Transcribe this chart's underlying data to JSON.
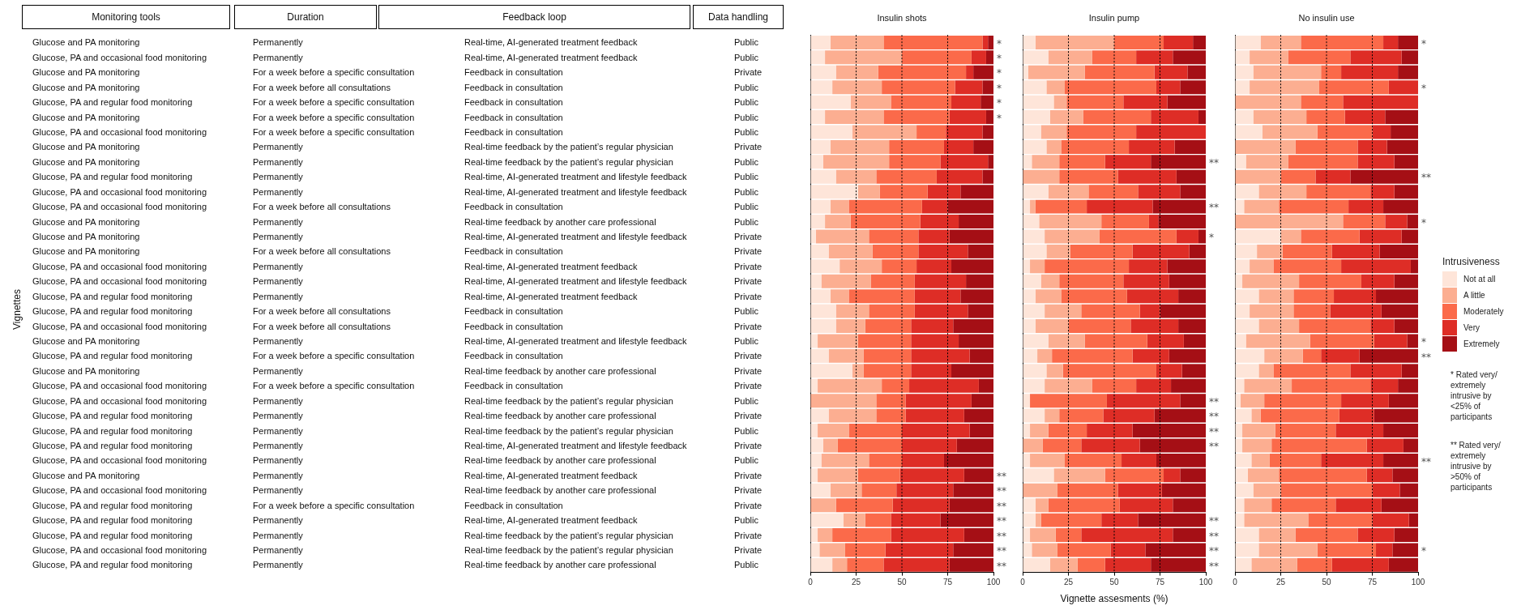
{
  "chart_data": [
    {
      "type": "other",
      "ylabel": "Vignettes",
      "categories": [
        "Monitoring tools",
        "Duration",
        "Feedback loop",
        "Data handling"
      ],
      "cell_labels": [
        [
          "Glucose and PA monitoring",
          "Permanently",
          "Real-time, AI-generated treatment feedback",
          "Public"
        ],
        [
          "Glucose, PA and occasional food monitoring",
          "Permanently",
          "Real-time, AI-generated treatment feedback",
          "Public"
        ],
        [
          "Glucose and PA monitoring",
          "For a week before a specific consultation",
          "Feedback in consultation",
          "Private"
        ],
        [
          "Glucose and PA monitoring",
          "For a week before all consultations",
          "Feedback in consultation",
          "Public"
        ],
        [
          "Glucose, PA and regular food monitoring",
          "For a week before a specific consultation",
          "Feedback in consultation",
          "Public"
        ],
        [
          "Glucose and PA monitoring",
          "For a week before a specific consultation",
          "Feedback in consultation",
          "Public"
        ],
        [
          "Glucose, PA and occasional food monitoring",
          "For a week before a specific consultation",
          "Feedback in consultation",
          "Public"
        ],
        [
          "Glucose and PA monitoring",
          "Permanently",
          "Real-time feedback by the patient’s regular physician",
          "Private"
        ],
        [
          "Glucose and PA monitoring",
          "Permanently",
          "Real-time feedback by the patient’s regular physician",
          "Public"
        ],
        [
          "Glucose, PA and regular food monitoring",
          "Permanently",
          "Real-time, AI-generated treatment and lifestyle feedback",
          "Public"
        ],
        [
          "Glucose, PA and occasional food monitoring",
          "Permanently",
          "Real-time, AI-generated treatment and lifestyle feedback",
          "Public"
        ],
        [
          "Glucose, PA and occasional food monitoring",
          "For a week before all consultations",
          "Feedback in consultation",
          "Public"
        ],
        [
          "Glucose and PA monitoring",
          "Permanently",
          "Real-time feedback by another care professional",
          "Public"
        ],
        [
          "Glucose and PA monitoring",
          "Permanently",
          "Real-time, AI-generated treatment and lifestyle feedback",
          "Private"
        ],
        [
          "Glucose and PA monitoring",
          "For a week before all consultations",
          "Feedback in consultation",
          "Private"
        ],
        [
          "Glucose, PA and occasional food monitoring",
          "Permanently",
          "Real-time, AI-generated treatment feedback",
          "Private"
        ],
        [
          "Glucose, PA and occasional food monitoring",
          "Permanently",
          "Real-time, AI-generated treatment and lifestyle feedback",
          "Private"
        ],
        [
          "Glucose, PA and regular food monitoring",
          "Permanently",
          "Real-time, AI-generated treatment feedback",
          "Private"
        ],
        [
          "Glucose, PA and regular food monitoring",
          "For a week before all consultations",
          "Feedback in consultation",
          "Public"
        ],
        [
          "Glucose, PA and occasional food monitoring",
          "For a week before all consultations",
          "Feedback in consultation",
          "Private"
        ],
        [
          "Glucose and PA monitoring",
          "Permanently",
          "Real-time, AI-generated treatment and lifestyle feedback",
          "Public"
        ],
        [
          "Glucose, PA and regular food monitoring",
          "For a week before a specific consultation",
          "Feedback in consultation",
          "Private"
        ],
        [
          "Glucose and PA monitoring",
          "Permanently",
          "Real-time feedback by another care professional",
          "Private"
        ],
        [
          "Glucose, PA and occasional food monitoring",
          "For a week before a specific consultation",
          "Feedback in consultation",
          "Private"
        ],
        [
          "Glucose, PA and occasional food monitoring",
          "Permanently",
          "Real-time feedback by the patient’s regular physician",
          "Public"
        ],
        [
          "Glucose, PA and regular food monitoring",
          "Permanently",
          "Real-time feedback by another care professional",
          "Private"
        ],
        [
          "Glucose, PA and regular food monitoring",
          "Permanently",
          "Real-time feedback by the patient’s regular physician",
          "Public"
        ],
        [
          "Glucose, PA and regular food monitoring",
          "Permanently",
          "Real-time, AI-generated treatment and lifestyle feedback",
          "Private"
        ],
        [
          "Glucose, PA and occasional food monitoring",
          "Permanently",
          "Real-time feedback by another care professional",
          "Public"
        ],
        [
          "Glucose and PA monitoring",
          "Permanently",
          "Real-time, AI-generated treatment feedback",
          "Private"
        ],
        [
          "Glucose, PA and occasional food monitoring",
          "Permanently",
          "Real-time feedback by another care professional",
          "Private"
        ],
        [
          "Glucose, PA and regular food monitoring",
          "For a week before a specific consultation",
          "Feedback in consultation",
          "Private"
        ],
        [
          "Glucose, PA and regular food monitoring",
          "Permanently",
          "Real-time, AI-generated treatment feedback",
          "Public"
        ],
        [
          "Glucose, PA and regular food monitoring",
          "Permanently",
          "Real-time feedback by the patient’s regular physician",
          "Private"
        ],
        [
          "Glucose, PA and occasional food monitoring",
          "Permanently",
          "Real-time feedback by the patient’s regular physician",
          "Private"
        ],
        [
          "Glucose, PA and regular food monitoring",
          "Permanently",
          "Real-time feedback by another care professional",
          "Public"
        ]
      ]
    },
    {
      "type": "bar",
      "orientation": "horizontal",
      "stacked": true,
      "title": "Insulin shots",
      "categories": [
        null,
        null,
        null,
        null,
        null,
        null,
        null,
        null,
        null,
        null,
        null,
        null,
        null,
        null,
        null,
        null,
        null,
        null,
        null,
        null,
        null,
        null,
        null,
        null,
        null,
        null,
        null,
        null,
        null,
        null,
        null,
        null,
        null,
        null,
        null,
        null
      ],
      "xlim": [
        0,
        100
      ],
      "xticks": [
        0,
        25,
        50,
        75,
        100
      ],
      "tick_labels": "x",
      "grid": false,
      "ref_lines": [
        {
          "axis": "x",
          "value": 25,
          "color": "#000000",
          "line_style": "dotted"
        },
        {
          "axis": "x",
          "value": 50,
          "color": "#000000",
          "line_style": "dotted"
        },
        {
          "axis": "x",
          "value": 75,
          "color": "#000000",
          "line_style": "dotted"
        }
      ],
      "series": [
        {
          "color": "#fee5d9",
          "values": [
            11,
            8,
            14,
            12,
            22,
            8,
            23,
            11,
            7,
            14,
            26,
            11,
            8,
            3,
            10,
            16,
            6,
            11,
            14,
            14,
            4,
            10,
            23,
            4,
            0,
            10,
            4,
            7,
            6,
            4,
            11,
            0,
            18,
            4,
            5,
            12
          ]
        },
        {
          "color": "#fcae91",
          "values": [
            29,
            42,
            23,
            27,
            22,
            32,
            35,
            32,
            36,
            22,
            12,
            10,
            14,
            29,
            24,
            23,
            27,
            10,
            18,
            16,
            22,
            19,
            6,
            35,
            36,
            26,
            17,
            8,
            26,
            22,
            17,
            14,
            12,
            8,
            14,
            8
          ]
        },
        {
          "color": "#fb6a4a",
          "values": [
            54,
            38,
            48,
            40,
            33,
            36,
            16,
            30,
            28,
            33,
            26,
            40,
            38,
            27,
            25,
            19,
            24,
            36,
            25,
            25,
            29,
            26,
            26,
            15,
            16,
            16,
            29,
            35,
            18,
            23,
            19,
            31,
            14,
            32,
            22,
            20
          ]
        },
        {
          "color": "#de2d26",
          "values": [
            3,
            8,
            4,
            15,
            16,
            20,
            20,
            16,
            26,
            25,
            18,
            14,
            21,
            17,
            27,
            19,
            28,
            25,
            29,
            23,
            26,
            32,
            22,
            38,
            36,
            32,
            37,
            30,
            23,
            35,
            31,
            31,
            27,
            40,
            37,
            36
          ]
        },
        {
          "color": "#a50f15",
          "values": [
            3,
            4,
            11,
            6,
            7,
            4,
            6,
            11,
            3,
            6,
            18,
            25,
            19,
            24,
            14,
            23,
            15,
            18,
            14,
            22,
            19,
            13,
            23,
            8,
            12,
            16,
            13,
            20,
            27,
            16,
            22,
            24,
            29,
            16,
            22,
            24
          ],
          "value_labels": [
            "*",
            "*",
            "*",
            "*",
            "*",
            "*",
            null,
            null,
            null,
            null,
            null,
            null,
            null,
            null,
            null,
            null,
            null,
            null,
            null,
            null,
            null,
            null,
            null,
            null,
            null,
            null,
            null,
            null,
            null,
            "**",
            "**",
            "**",
            "**",
            "**",
            "**",
            "**"
          ]
        }
      ]
    },
    {
      "type": "bar",
      "orientation": "horizontal",
      "stacked": true,
      "title": "Insulin pump",
      "xlabel": "Vignette assesments (%)",
      "categories": [
        null,
        null,
        null,
        null,
        null,
        null,
        null,
        null,
        null,
        null,
        null,
        null,
        null,
        null,
        null,
        null,
        null,
        null,
        null,
        null,
        null,
        null,
        null,
        null,
        null,
        null,
        null,
        null,
        null,
        null,
        null,
        null,
        null,
        null,
        null,
        null
      ],
      "xlim": [
        0,
        100
      ],
      "xticks": [
        0,
        25,
        50,
        75,
        100
      ],
      "tick_labels": "x",
      "grid": false,
      "ref_lines": [
        {
          "axis": "x",
          "value": 25,
          "color": "#000000",
          "line_style": "dotted"
        },
        {
          "axis": "x",
          "value": 50,
          "color": "#000000",
          "line_style": "dotted"
        },
        {
          "axis": "x",
          "value": 75,
          "color": "#000000",
          "line_style": "dotted"
        }
      ],
      "series": [
        {
          "color": "#fee5d9",
          "values": [
            7,
            14,
            3,
            13,
            17,
            15,
            10,
            13,
            5,
            0,
            14,
            4,
            9,
            12,
            13,
            4,
            10,
            7,
            12,
            7,
            14,
            8,
            13,
            12,
            4,
            12,
            4,
            0,
            4,
            17,
            0,
            7,
            7,
            4,
            5,
            15
          ]
        },
        {
          "color": "#fcae91",
          "values": [
            43,
            24,
            31,
            10,
            7,
            18,
            14,
            8,
            15,
            20,
            22,
            3,
            34,
            30,
            13,
            8,
            10,
            14,
            20,
            18,
            20,
            8,
            9,
            26,
            0,
            8,
            10,
            11,
            19,
            28,
            19,
            7,
            3,
            14,
            14,
            15
          ]
        },
        {
          "color": "#fb6a4a",
          "values": [
            27,
            24,
            38,
            50,
            31,
            37,
            38,
            37,
            25,
            32,
            27,
            28,
            26,
            42,
            34,
            46,
            35,
            36,
            32,
            34,
            34,
            44,
            51,
            24,
            42,
            24,
            21,
            21,
            31,
            32,
            33,
            39,
            33,
            14,
            29,
            15
          ]
        },
        {
          "color": "#de2d26",
          "values": [
            16,
            20,
            18,
            13,
            24,
            26,
            38,
            25,
            25,
            32,
            23,
            36,
            5,
            12,
            31,
            21,
            25,
            28,
            11,
            26,
            20,
            20,
            14,
            19,
            40,
            28,
            25,
            32,
            19,
            9,
            24,
            29,
            20,
            50,
            19,
            25
          ]
        },
        {
          "color": "#a50f15",
          "values": [
            7,
            18,
            10,
            14,
            21,
            4,
            0,
            17,
            30,
            16,
            14,
            29,
            26,
            4,
            9,
            21,
            20,
            15,
            25,
            15,
            12,
            20,
            13,
            19,
            14,
            28,
            40,
            36,
            27,
            14,
            24,
            18,
            37,
            18,
            33,
            30
          ],
          "value_labels": [
            null,
            null,
            null,
            null,
            null,
            null,
            null,
            null,
            "**",
            null,
            null,
            "**",
            null,
            "*",
            null,
            null,
            null,
            null,
            null,
            null,
            null,
            null,
            null,
            null,
            "**",
            "**",
            "**",
            "**",
            null,
            null,
            null,
            null,
            "**",
            "**",
            "**",
            "**"
          ]
        }
      ]
    },
    {
      "type": "bar",
      "orientation": "horizontal",
      "stacked": true,
      "title": "No insulin use",
      "categories": [
        null,
        null,
        null,
        null,
        null,
        null,
        null,
        null,
        null,
        null,
        null,
        null,
        null,
        null,
        null,
        null,
        null,
        null,
        null,
        null,
        null,
        null,
        null,
        null,
        null,
        null,
        null,
        null,
        null,
        null,
        null,
        null,
        null,
        null,
        null,
        null
      ],
      "xlim": [
        0,
        100
      ],
      "xticks": [
        0,
        25,
        50,
        75,
        100
      ],
      "tick_labels": "x",
      "grid": false,
      "ref_lines": [
        {
          "axis": "x",
          "value": 25,
          "color": "#000000",
          "line_style": "dotted"
        },
        {
          "axis": "x",
          "value": 50,
          "color": "#000000",
          "line_style": "dotted"
        },
        {
          "axis": "x",
          "value": 75,
          "color": "#000000",
          "line_style": "dotted"
        }
      ],
      "legend": "right",
      "legend_title": "Intrusiveness",
      "annotations": [
        "* Rated very/ extremely intrusive by <25% of participants",
        "** Rated very/ extremely intrusive by >50% of participants"
      ],
      "series": [
        {
          "name": "Not at all",
          "color": "#fee5d9",
          "values": [
            14,
            8,
            10,
            8,
            0,
            10,
            15,
            0,
            6,
            0,
            13,
            5,
            0,
            25,
            12,
            8,
            4,
            13,
            8,
            13,
            6,
            16,
            13,
            5,
            3,
            9,
            4,
            4,
            9,
            7,
            10,
            5,
            5,
            13,
            13,
            9
          ]
        },
        {
          "name": "A little",
          "color": "#fcae91",
          "values": [
            22,
            21,
            37,
            38,
            36,
            29,
            30,
            33,
            23,
            25,
            26,
            19,
            59,
            11,
            14,
            13,
            31,
            19,
            24,
            22,
            35,
            21,
            8,
            26,
            13,
            5,
            18,
            16,
            10,
            17,
            15,
            15,
            35,
            20,
            32,
            25
          ]
        },
        {
          "name": "Moderately",
          "color": "#fb6a4a",
          "values": [
            45,
            34,
            11,
            38,
            23,
            21,
            30,
            34,
            38,
            19,
            35,
            38,
            23,
            32,
            27,
            37,
            34,
            22,
            20,
            39,
            35,
            10,
            42,
            43,
            42,
            43,
            33,
            52,
            28,
            48,
            50,
            35,
            35,
            34,
            32,
            19
          ]
        },
        {
          "name": "Very",
          "color": "#de2d26",
          "values": [
            8,
            28,
            31,
            16,
            41,
            22,
            10,
            16,
            20,
            19,
            13,
            19,
            12,
            23,
            26,
            38,
            18,
            23,
            28,
            13,
            18,
            21,
            28,
            15,
            26,
            19,
            26,
            20,
            34,
            14,
            15,
            25,
            20,
            20,
            9,
            31
          ]
        },
        {
          "name": "Extremely",
          "color": "#a50f15",
          "values": [
            11,
            9,
            11,
            0,
            0,
            18,
            15,
            17,
            13,
            37,
            13,
            19,
            6,
            9,
            21,
            4,
            13,
            23,
            20,
            13,
            6,
            32,
            9,
            11,
            16,
            24,
            19,
            8,
            19,
            14,
            10,
            20,
            5,
            13,
            14,
            16
          ],
          "value_labels": [
            "*",
            null,
            null,
            "*",
            null,
            null,
            null,
            null,
            null,
            "**",
            null,
            null,
            "*",
            null,
            null,
            null,
            null,
            null,
            null,
            null,
            "*",
            "**",
            null,
            null,
            null,
            null,
            null,
            null,
            "**",
            null,
            null,
            null,
            null,
            null,
            "*",
            null
          ]
        }
      ]
    }
  ]
}
